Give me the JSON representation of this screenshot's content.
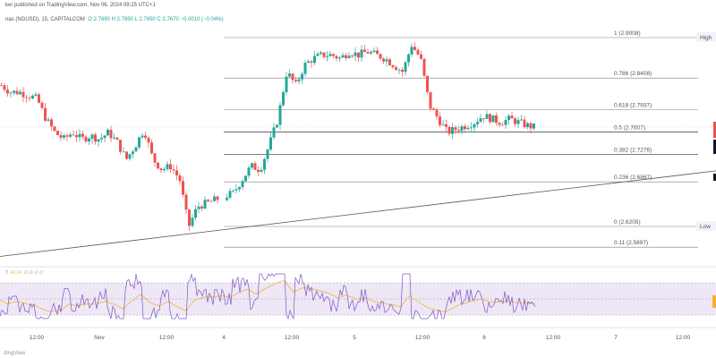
{
  "header": {
    "published": "ker published on TradingView.com, Nov 06, 2024 09:25 UTC+1",
    "symbol": "nas (NGUSD), 15, CAPITALCOM",
    "ohlc": "O 2.7690  H 2.7690  L 2.7650  C 2.7670  −0.0010 (−0.04%)"
  },
  "rsi_legend": {
    "label": "7",
    "ma_value": "40.24",
    "placeholders": "∅ ∅ ∅ ∅"
  },
  "watermark": "dingView",
  "colors": {
    "up": "#26a69a",
    "down": "#ef5350",
    "rsi": "#7e57c2",
    "rsi_ma": "#f5b335",
    "rsi_band": "#ede7f6",
    "fib_line": "#787b86",
    "current_price_line": "#ef5350"
  },
  "chart_data": {
    "type": "candlestick",
    "symbol": "NGUSD",
    "interval": "15",
    "x_ticks": [
      "12:00",
      "Nov",
      "12:00",
      "4",
      "12:00",
      "5",
      "12:00",
      "6",
      "12:00",
      "7",
      "12:00"
    ],
    "fibonacci": [
      {
        "ratio": "1",
        "price": 2.9008,
        "label": "1 (2.9008)"
      },
      {
        "ratio": "0.786",
        "price": 2.8408,
        "label": "0.786 (2.8408)"
      },
      {
        "ratio": "0.618",
        "price": 2.7937,
        "label": "0.618 (2.7937)"
      },
      {
        "ratio": "0.5",
        "price": 2.7607,
        "label": "0.5 (2.7607)"
      },
      {
        "ratio": "0.382",
        "price": 2.7276,
        "label": "0.382 (2.7276)"
      },
      {
        "ratio": "0.236",
        "price": 2.6867,
        "label": "0.236 (2.6867)"
      },
      {
        "ratio": "0",
        "price": 2.6205,
        "label": "0 (2.6205)"
      },
      {
        "ratio": "0.11",
        "price": 2.5897,
        "label": "0.11 (2.5897)"
      }
    ],
    "markers": {
      "high": "High",
      "low": "Low"
    },
    "trendline": {
      "from_price": 2.576,
      "to_price": 2.703
    },
    "price_path": [
      2.83,
      2.82,
      2.82,
      2.815,
      2.81,
      2.78,
      2.76,
      2.75,
      2.76,
      2.75,
      2.755,
      2.75,
      2.76,
      2.745,
      2.72,
      2.74,
      2.765,
      2.72,
      2.705,
      2.71,
      2.69,
      2.62,
      2.65,
      2.655,
      2.66,
      2.665,
      2.67,
      2.69,
      2.71,
      2.705,
      2.74,
      2.78,
      2.85,
      2.83,
      2.86,
      2.87,
      2.875,
      2.875,
      2.87,
      2.88,
      2.875,
      2.88,
      2.875,
      2.87,
      2.86,
      2.85,
      2.89,
      2.87,
      2.8,
      2.78,
      2.76,
      2.765,
      2.77,
      2.775,
      2.785,
      2.78,
      2.775,
      2.78,
      2.775,
      2.77,
      2.767
    ]
  }
}
